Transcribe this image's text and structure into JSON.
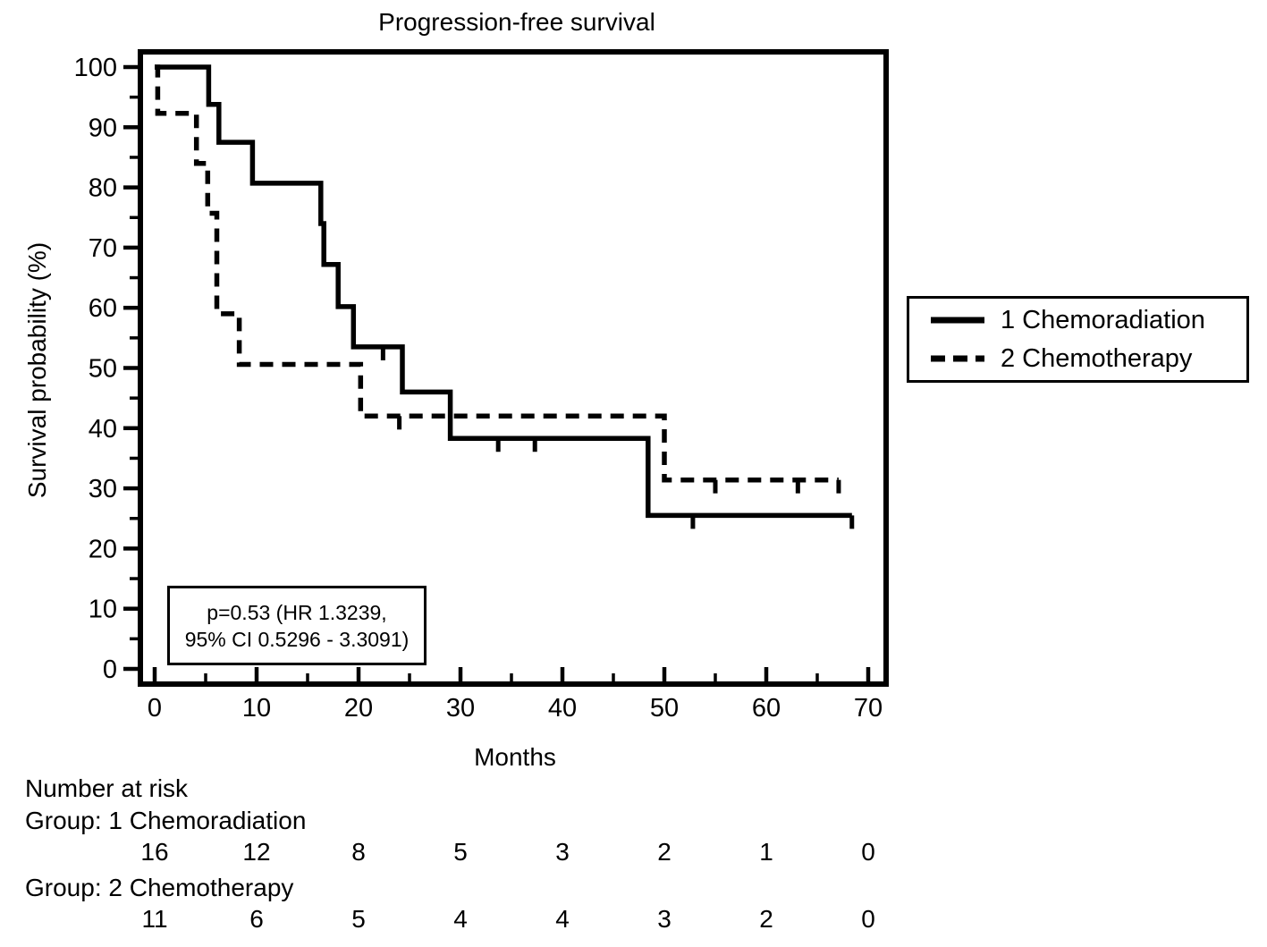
{
  "chart_data": {
    "type": "line",
    "subtype": "kaplan-meier-step",
    "title": "Progression-free survival",
    "xlabel": "Months",
    "ylabel": "Survival probability (%)",
    "xlim": [
      0,
      71.5
    ],
    "ylim": [
      0,
      100
    ],
    "grid": false,
    "legend_position": "right-outside",
    "x_ticks": [
      0,
      10,
      20,
      30,
      40,
      50,
      60,
      70
    ],
    "x_minor_ticks": [
      5,
      15,
      25,
      35,
      45,
      55,
      65
    ],
    "y_ticks": [
      100,
      90,
      80,
      70,
      60,
      50,
      40,
      30,
      20,
      10,
      0
    ],
    "y_minor_ticks": [
      95,
      85,
      75,
      65,
      55,
      45,
      35,
      25,
      15,
      5
    ],
    "axis_color": "#000000",
    "series": [
      {
        "name": "1 Chemoradiation",
        "line_style": "solid",
        "color": "#000000",
        "steps_time_percent": [
          [
            0,
            100
          ],
          [
            5.3,
            93.8
          ],
          [
            6.3,
            87.5
          ],
          [
            9.6,
            80.7
          ],
          [
            16.3,
            74.0
          ],
          [
            16.6,
            67.2
          ],
          [
            18.0,
            60.2
          ],
          [
            19.5,
            53.5
          ],
          [
            24.3,
            46.0
          ],
          [
            29.0,
            38.3
          ],
          [
            48.4,
            25.5
          ],
          [
            68.4,
            25.5
          ]
        ],
        "censor_marks_time_percent": [
          [
            22.4,
            53.5
          ],
          [
            33.7,
            38.3
          ],
          [
            37.3,
            38.3
          ],
          [
            52.8,
            25.5
          ],
          [
            68.4,
            25.5
          ]
        ]
      },
      {
        "name": "2 Chemotherapy",
        "line_style": "dashed",
        "color": "#000000",
        "steps_time_percent": [
          [
            0,
            100
          ],
          [
            0.3,
            92.3
          ],
          [
            4.1,
            84.0
          ],
          [
            5.2,
            75.7
          ],
          [
            6.1,
            59.0
          ],
          [
            8.3,
            50.6
          ],
          [
            20.2,
            42.0
          ],
          [
            50.0,
            31.4
          ],
          [
            67.1,
            31.4
          ]
        ],
        "censor_marks_time_percent": [
          [
            24.0,
            42.0
          ],
          [
            55.0,
            31.4
          ],
          [
            63.1,
            31.4
          ],
          [
            67.1,
            31.4
          ]
        ]
      }
    ],
    "annotation": {
      "line1": "p=0.53 (HR 1.3239,",
      "line2": "95% CI 0.5296 - 3.3091)"
    },
    "number_at_risk": {
      "header": "Number at risk",
      "columns_months": [
        0,
        10,
        20,
        30,
        40,
        50,
        60,
        70
      ],
      "groups": [
        {
          "label": "Group: 1 Chemoradiation",
          "values": [
            16,
            12,
            8,
            5,
            3,
            2,
            1,
            0
          ]
        },
        {
          "label": "Group: 2 Chemotherapy",
          "values": [
            11,
            6,
            5,
            4,
            4,
            3,
            2,
            0
          ]
        }
      ]
    }
  }
}
